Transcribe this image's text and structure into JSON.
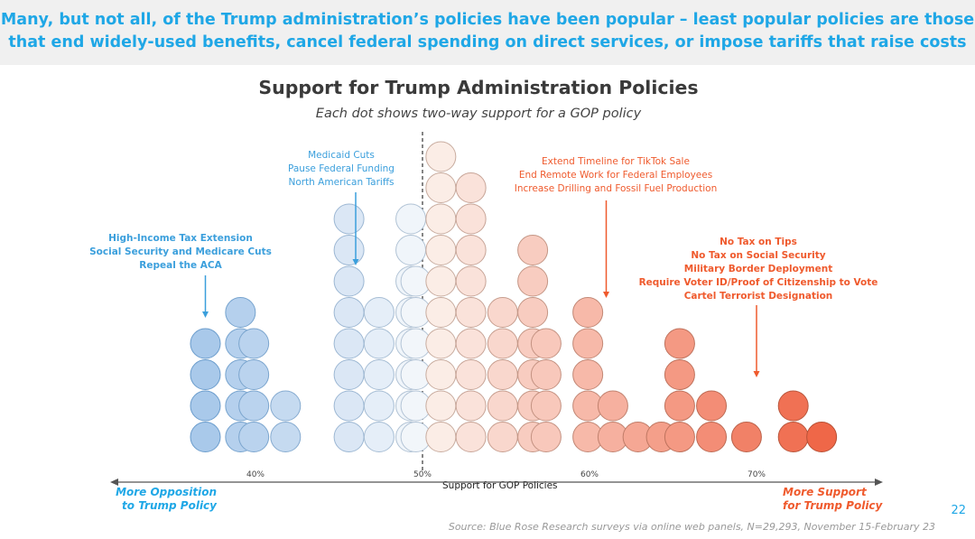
{
  "headline": "Many, but not all, of the Trump administration’s policies have been popular – least popular policies are those that end widely-used benefits, cancel federal spending on direct services, or impose tariffs that raise costs",
  "page_number": "22",
  "source": "Source: Blue Rose Research surveys via online web panels, N=29,293, November 15-February 23",
  "colors": {
    "headline": "#1fa7e6",
    "opposition": "#3b9fdc",
    "support": "#ef5a2d"
  },
  "chart_data": {
    "type": "scatter",
    "variant": "stacked dot plot (one dot per GOP policy)",
    "title": "Support for Trump Administration Policies",
    "subtitle": "Each dot shows two-way support for a GOP policy",
    "xlabel": "Support for GOP Policies",
    "xlim": [
      31,
      77
    ],
    "x_ticks": [
      {
        "value": 40,
        "label": "40%"
      },
      {
        "value": 50,
        "label": "50%"
      },
      {
        "value": 60,
        "label": "60%"
      },
      {
        "value": 70,
        "label": "70%"
      }
    ],
    "reference_line": 50,
    "left_arrow_label": [
      "More Opposition",
      "to Trump Policy"
    ],
    "right_arrow_label": [
      "More Support",
      "for Trump Policy"
    ],
    "columns": [
      {
        "x": 37.0,
        "count": 4
      },
      {
        "x": 39.1,
        "count": 5
      },
      {
        "x": 39.9,
        "count": 4
      },
      {
        "x": 41.8,
        "count": 2
      },
      {
        "x": 45.6,
        "count": 8
      },
      {
        "x": 47.4,
        "count": 5
      },
      {
        "x": 49.3,
        "count": 8
      },
      {
        "x": 49.6,
        "count": 6
      },
      {
        "x": 51.1,
        "count": 10
      },
      {
        "x": 52.9,
        "count": 9
      },
      {
        "x": 54.8,
        "count": 5
      },
      {
        "x": 56.6,
        "count": 7
      },
      {
        "x": 57.4,
        "count": 4
      },
      {
        "x": 59.9,
        "count": 5
      },
      {
        "x": 61.4,
        "count": 2
      },
      {
        "x": 62.9,
        "count": 1
      },
      {
        "x": 64.3,
        "count": 1
      },
      {
        "x": 65.4,
        "count": 4
      },
      {
        "x": 67.3,
        "count": 2
      },
      {
        "x": 69.4,
        "count": 1
      },
      {
        "x": 72.2,
        "count": 2
      },
      {
        "x": 73.9,
        "count": 1
      }
    ],
    "annotations": [
      {
        "group": "opposition",
        "bold": true,
        "lines": [
          "High-Income Tax Extension",
          "Social Security and Medicare Cuts",
          "Repeal the ACA"
        ],
        "points_to_x": 37.0
      },
      {
        "group": "opposition",
        "bold": false,
        "lines": [
          "Medicaid Cuts",
          "Pause Federal Funding",
          "North American Tariffs"
        ],
        "points_to_x": 46.0
      },
      {
        "group": "support",
        "bold": false,
        "lines": [
          "Extend Timeline for TikTok Sale",
          "End Remote Work for Federal Employees",
          "Increase Drilling and Fossil Fuel Production"
        ],
        "points_to_x": 61.0
      },
      {
        "group": "support",
        "bold": true,
        "lines": [
          "No Tax on Tips",
          "No Tax on Social Security",
          "Military Border Deployment",
          "Require Voter ID/Proof of Citizenship to Vote",
          "Cartel Terrorist Designation"
        ],
        "points_to_x": 70.0
      }
    ],
    "grid": false,
    "legend": "none"
  }
}
